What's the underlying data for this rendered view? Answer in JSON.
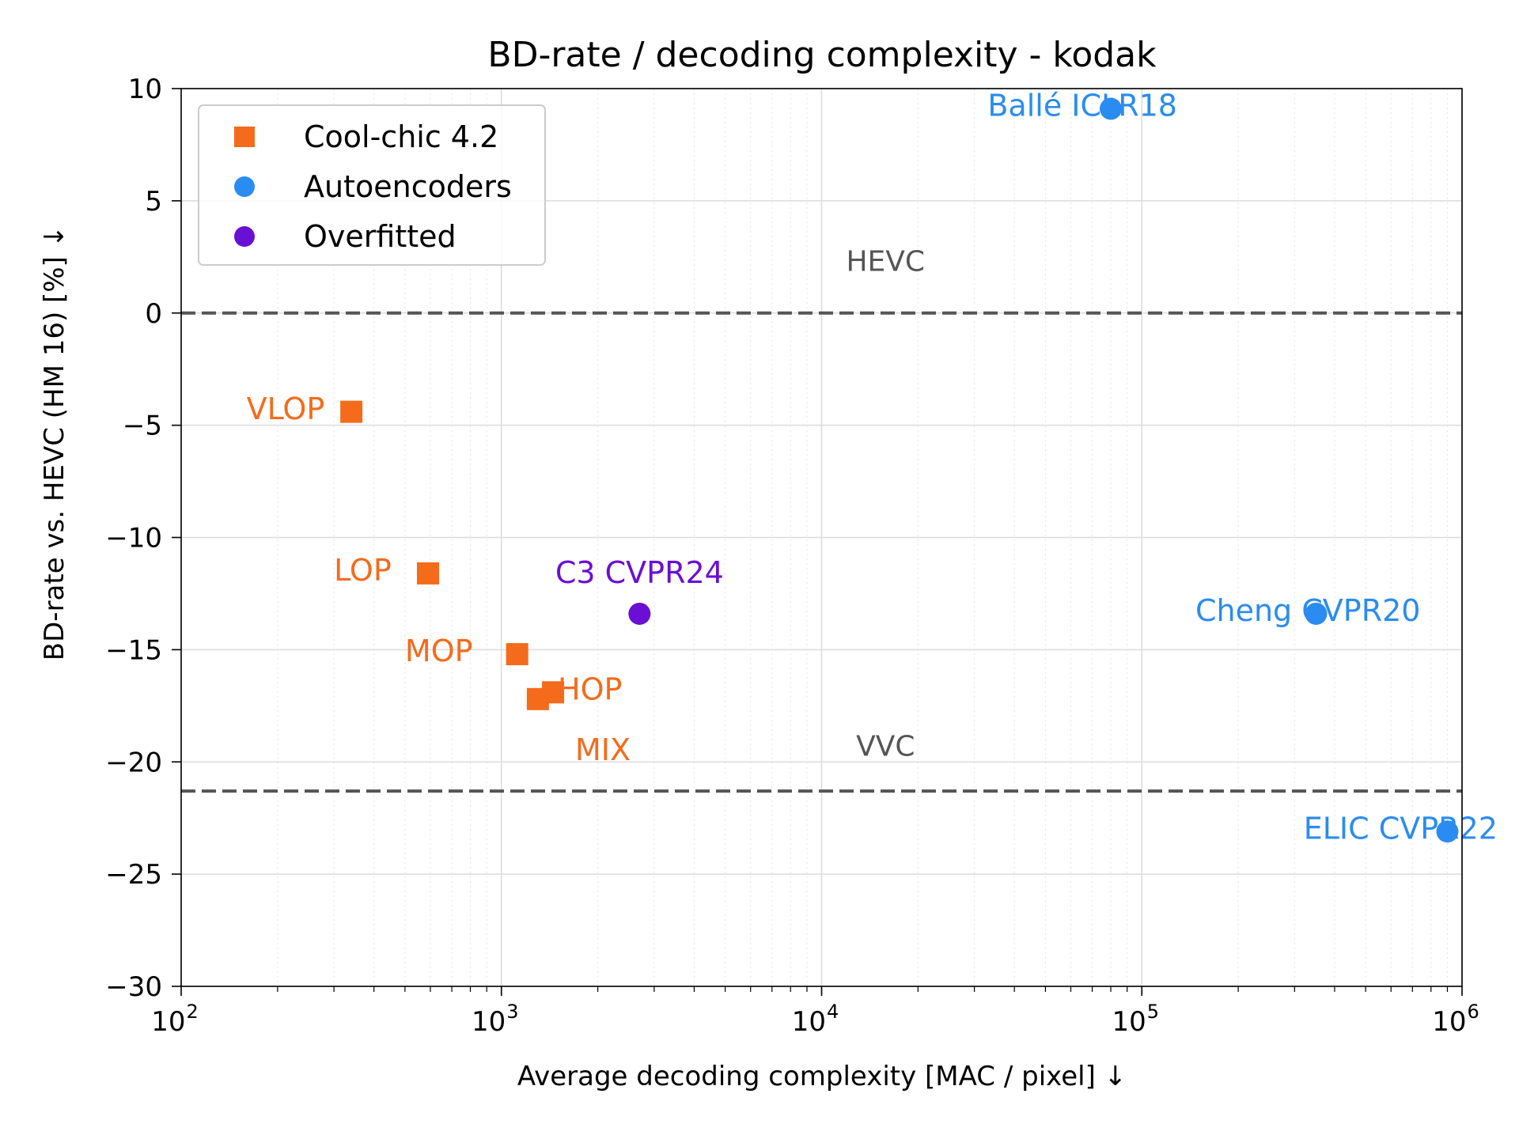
{
  "chart_data": {
    "type": "scatter",
    "title": "BD-rate / decoding complexity - kodak",
    "xlabel": "Average decoding complexity [MAC / pixel]  ↓",
    "ylabel": "BD-rate vs. HEVC (HM 16) [%]  ↓",
    "x_scale": "log",
    "xlim": [
      100,
      1000000
    ],
    "ylim": [
      -30,
      10
    ],
    "x_ticks": [
      {
        "value": 100,
        "base": "10",
        "exp": "2"
      },
      {
        "value": 1000,
        "base": "10",
        "exp": "3"
      },
      {
        "value": 10000,
        "base": "10",
        "exp": "4"
      },
      {
        "value": 100000,
        "base": "10",
        "exp": "5"
      },
      {
        "value": 1000000,
        "base": "10",
        "exp": "6"
      }
    ],
    "y_ticks": [
      {
        "value": 10,
        "label": "10"
      },
      {
        "value": 5,
        "label": "5"
      },
      {
        "value": 0,
        "label": "0"
      },
      {
        "value": -5,
        "label": "−5"
      },
      {
        "value": -10,
        "label": "−10"
      },
      {
        "value": -15,
        "label": "−15"
      },
      {
        "value": -20,
        "label": "−20"
      },
      {
        "value": -25,
        "label": "−25"
      },
      {
        "value": -30,
        "label": "−30"
      }
    ],
    "grid": true,
    "legend_position": "top-left",
    "reference_lines": [
      {
        "label": "HEVC",
        "y": 0,
        "label_x": 8000,
        "label_y": 2.3
      },
      {
        "label": "VVC",
        "y": -21.3,
        "label_x": 8000,
        "label_y": -19.3
      }
    ],
    "series": [
      {
        "name": "Cool-chic 4.2",
        "marker": "square",
        "color": "#f46b1c",
        "points": [
          {
            "label": "VLOP",
            "x": 340,
            "y": -4.4,
            "label_x": 160,
            "label_y": -4.3
          },
          {
            "label": "LOP",
            "x": 590,
            "y": -11.6,
            "label_x": 300,
            "label_y": -11.5
          },
          {
            "label": "MOP",
            "x": 1120,
            "y": -15.2,
            "label_x": 500,
            "label_y": -15.1
          },
          {
            "label": "HOP",
            "x": 1450,
            "y": -16.9,
            "label_x": 1500,
            "label_y": -16.8
          },
          {
            "label": "MIX",
            "x": 1300,
            "y": -17.2,
            "label_x": 1700,
            "label_y": -19.5
          }
        ]
      },
      {
        "name": "Autoencoders",
        "marker": "circle",
        "color": "#2a8cf0",
        "points": [
          {
            "label": "Ballé ICLR18",
            "x": 80000,
            "y": 9.1,
            "label_x": 33000,
            "label_y": 9.2
          },
          {
            "label": "Cheng CVPR20",
            "x": 350000,
            "y": -13.4,
            "label_x": 147000,
            "label_y": -13.3
          },
          {
            "label": "ELIC CVPR22",
            "x": 900000,
            "y": -23.1,
            "label_x": 320000,
            "label_y": -23.0
          }
        ]
      },
      {
        "name": "Overfitted",
        "marker": "circle",
        "color": "#6a0fd4",
        "points": [
          {
            "label": "C3 CVPR24",
            "x": 2700,
            "y": -13.4,
            "label_x": 2700,
            "label_y": -11.6
          }
        ]
      }
    ],
    "colors": {
      "hevc_vvc_line": "#555555",
      "grid": "#dcdcdc"
    }
  }
}
